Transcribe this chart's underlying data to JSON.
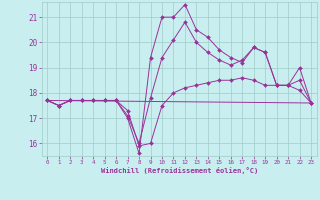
{
  "xlabel": "Windchill (Refroidissement éolien,°C)",
  "ylabel": "",
  "background_color": "#c8eef0",
  "grid_color": "#a0ccc8",
  "line_color": "#993399",
  "xlim": [
    -0.5,
    23.5
  ],
  "ylim": [
    15.5,
    21.6
  ],
  "yticks": [
    16,
    17,
    18,
    19,
    20,
    21
  ],
  "xticks": [
    0,
    1,
    2,
    3,
    4,
    5,
    6,
    7,
    8,
    9,
    10,
    11,
    12,
    13,
    14,
    15,
    16,
    17,
    18,
    19,
    20,
    21,
    22,
    23
  ],
  "lines": [
    {
      "x": [
        0,
        1,
        2,
        3,
        4,
        5,
        6,
        7,
        8,
        9,
        10,
        11,
        12,
        13,
        14,
        15,
        16,
        17,
        18,
        19,
        20,
        21,
        22,
        23
      ],
      "y": [
        17.7,
        17.5,
        17.7,
        17.7,
        17.7,
        17.7,
        17.7,
        17.0,
        15.6,
        19.4,
        21.0,
        21.0,
        21.5,
        20.5,
        20.2,
        19.7,
        19.4,
        19.2,
        19.8,
        19.6,
        18.3,
        18.3,
        19.0,
        17.6
      ]
    },
    {
      "x": [
        0,
        1,
        2,
        3,
        4,
        5,
        6,
        7,
        8,
        9,
        10,
        11,
        12,
        13,
        14,
        15,
        16,
        17,
        18,
        19,
        20,
        21,
        22,
        23
      ],
      "y": [
        17.7,
        17.5,
        17.7,
        17.7,
        17.7,
        17.7,
        17.7,
        17.3,
        15.9,
        16.0,
        17.5,
        18.0,
        18.2,
        18.3,
        18.4,
        18.5,
        18.5,
        18.6,
        18.5,
        18.3,
        18.3,
        18.3,
        18.1,
        17.6
      ]
    },
    {
      "x": [
        0,
        23
      ],
      "y": [
        17.7,
        17.6
      ]
    },
    {
      "x": [
        0,
        1,
        2,
        3,
        4,
        5,
        6,
        7,
        8,
        9,
        10,
        11,
        12,
        13,
        14,
        15,
        16,
        17,
        18,
        19,
        20,
        21,
        22,
        23
      ],
      "y": [
        17.7,
        17.5,
        17.7,
        17.7,
        17.7,
        17.7,
        17.7,
        17.1,
        16.0,
        17.8,
        19.4,
        20.1,
        20.8,
        20.0,
        19.6,
        19.3,
        19.1,
        19.3,
        19.8,
        19.6,
        18.3,
        18.3,
        18.5,
        17.6
      ]
    }
  ],
  "markers": [
    true,
    true,
    false,
    true
  ]
}
